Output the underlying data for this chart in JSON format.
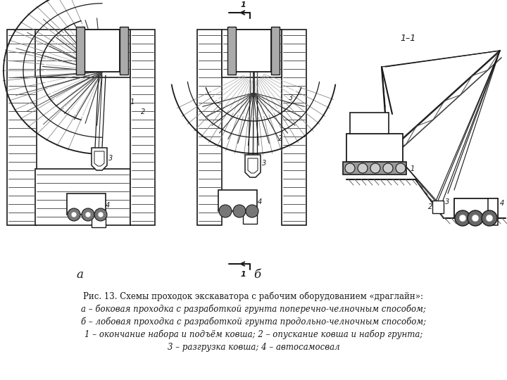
{
  "bg_color": "#ffffff",
  "line_color": "#1a1a1a",
  "hatch_color": "#888888",
  "figsize": [
    7.2,
    5.4
  ],
  "dpi": 100,
  "label_a": "а",
  "label_b": "б",
  "section_label": "1–1",
  "caption_lines": [
    "Рис. 13. Схемы проходок экскаватора с рабочим оборудованием «драглайн»:",
    "а – боковая проходка с разработкой грунта поперечно-челночным способом;",
    "б – лобовая проходка с разработкой грунта продольно-челночным способом;",
    "1 – окончание набора и подъём ковша; 2 – опускание ковша и набор грунта;",
    "3 – разгрузка ковша; 4 – автосамосвал"
  ]
}
